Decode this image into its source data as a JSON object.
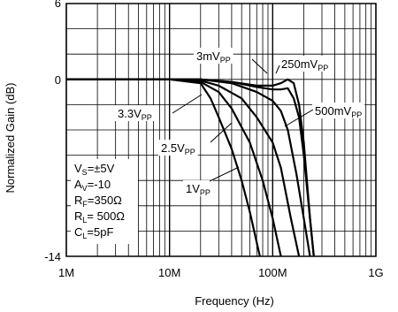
{
  "chart_data": {
    "type": "line",
    "xlabel": "Frequency (Hz)",
    "ylabel": "Normalized Gain (dB)",
    "xscale": "log",
    "xlim": [
      1000000,
      1000000000
    ],
    "ylim": [
      -14,
      6
    ],
    "grid": true,
    "x_ticks": [
      {
        "value": 1000000,
        "label": "1M"
      },
      {
        "value": 10000000,
        "label": "10M"
      },
      {
        "value": 100000000,
        "label": "100M"
      },
      {
        "value": 1000000000,
        "label": "1G"
      }
    ],
    "y_ticks": [
      {
        "value": 6,
        "label": "6"
      },
      {
        "value": 0,
        "label": "0"
      },
      {
        "value": -14,
        "label": "-14"
      }
    ],
    "series": [
      {
        "name": "250mVPP",
        "x": [
          1000000,
          10000000,
          20000000,
          40000000,
          70000000,
          100000000,
          120000000,
          140000000,
          160000000,
          180000000,
          200000000,
          230000000,
          250000000
        ],
        "y": [
          0,
          0,
          0,
          -0.2,
          -0.5,
          -0.5,
          -0.3,
          0,
          -0.3,
          -2,
          -5,
          -11,
          -14
        ]
      },
      {
        "name": "500mVPP",
        "x": [
          1000000,
          10000000,
          20000000,
          40000000,
          70000000,
          100000000,
          120000000,
          140000000,
          160000000,
          180000000,
          200000000,
          230000000,
          250000000
        ],
        "y": [
          0,
          0,
          0,
          -0.2,
          -0.6,
          -0.8,
          -0.8,
          -0.7,
          -1.5,
          -3,
          -6,
          -11,
          -14
        ]
      },
      {
        "name": "3mVPP",
        "x": [
          1000000,
          10000000,
          20000000,
          40000000,
          70000000,
          100000000,
          120000000,
          140000000,
          170000000,
          200000000,
          230000000
        ],
        "y": [
          0,
          0,
          0,
          -0.3,
          -1,
          -1.7,
          -2.5,
          -4,
          -7.5,
          -11,
          -14
        ]
      },
      {
        "name": "3.3VPP",
        "x": [
          1000000,
          10000000,
          20000000,
          30000000,
          50000000,
          70000000,
          100000000,
          120000000,
          150000000,
          180000000
        ],
        "y": [
          0,
          0,
          -0.1,
          -0.5,
          -1.5,
          -3,
          -5,
          -7,
          -11,
          -14
        ]
      },
      {
        "name": "2.5VPP",
        "x": [
          1000000,
          10000000,
          20000000,
          30000000,
          40000000,
          60000000,
          80000000,
          100000000,
          120000000
        ],
        "y": [
          0,
          0,
          -0.2,
          -1,
          -2.3,
          -5,
          -8,
          -11,
          -14
        ]
      },
      {
        "name": "1VPP",
        "x": [
          1000000,
          10000000,
          20000000,
          25000000,
          30000000,
          40000000,
          50000000,
          60000000,
          75000000
        ],
        "y": [
          0,
          0,
          -0.3,
          -1.5,
          -3,
          -5.5,
          -8,
          -10.5,
          -14
        ]
      }
    ],
    "annotations": [
      {
        "main": "3mV",
        "sub": "PP"
      },
      {
        "main": "250mV",
        "sub": "PP"
      },
      {
        "main": "3.3V",
        "sub": "PP"
      },
      {
        "main": "500mV",
        "sub": "PP"
      },
      {
        "main": "2.5V",
        "sub": "PP"
      },
      {
        "main": "1V",
        "sub": "PP"
      }
    ],
    "conditions": [
      {
        "main": "V",
        "sub": "S",
        "rest": "=±5V"
      },
      {
        "main": "A",
        "sub": "V",
        "rest": "=-10"
      },
      {
        "main": "R",
        "sub": "F",
        "rest": "=350Ω"
      },
      {
        "main": "R",
        "sub": "L",
        "rest": "= 500Ω"
      },
      {
        "main": "C",
        "sub": "L",
        "rest": "=5pF"
      }
    ]
  }
}
